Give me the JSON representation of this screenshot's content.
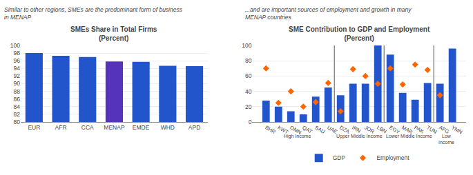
{
  "chart_data": [
    {
      "type": "bar",
      "title": "SMEs Share in Total Firms\n(Percent)",
      "subtitle": "Similar to other regions, SMEs are the predominant form of business\nin MENAP",
      "categories": [
        "EUR",
        "AFR",
        "CCA",
        "MENAP",
        "EMDE",
        "WHD",
        "APD"
      ],
      "values": [
        98.0,
        97.3,
        97.0,
        95.8,
        95.7,
        94.7,
        94.6
      ],
      "colors": [
        "#2255CC",
        "#2255CC",
        "#2255CC",
        "#5533BB",
        "#2255CC",
        "#2255CC",
        "#2255CC"
      ],
      "ylim": [
        80,
        100
      ],
      "yticks": [
        80,
        82,
        84,
        86,
        88,
        90,
        92,
        94,
        96,
        98,
        100
      ],
      "grid": true
    },
    {
      "type": "bar",
      "title": "SME Contribution to GDP and Employment\n(Percent)",
      "subtitle": "...and are important sources of employment and growth in many\nMENAP countries",
      "categories": [
        "BHR",
        "KWT",
        "OMN",
        "QAT",
        "SAU",
        "UAE",
        "DZA",
        "IRN",
        "JOR",
        "LBN",
        "EGY",
        "MAR",
        "PAK",
        "TUN",
        "AFG",
        "YMN"
      ],
      "series": [
        {
          "name": "GDP",
          "type": "bar",
          "color": "#2255CC",
          "values": [
            28,
            20,
            14,
            10,
            33,
            45,
            35,
            50,
            50,
            100,
            88,
            38,
            29,
            51,
            50,
            96
          ]
        },
        {
          "name": "Employment",
          "type": "scatter",
          "marker": "diamond",
          "color": "#FF6600",
          "values": [
            70,
            25,
            40,
            20,
            26,
            51,
            14,
            69,
            60,
            50,
            70,
            49,
            75,
            68,
            35,
            null
          ]
        }
      ],
      "annotations": [
        {
          "text": "High Income",
          "from": "BHR",
          "to": "UAE"
        },
        {
          "text": "Upper Middle Income",
          "from": "DZA",
          "to": "LBN"
        },
        {
          "text": "Lower Middle Income",
          "from": "EGY",
          "to": "TUN"
        },
        {
          "text": "Low\nIncome",
          "from": "AFG",
          "to": "YMN"
        }
      ],
      "ylim": [
        0,
        100
      ],
      "yticks": [
        0,
        20,
        40,
        60,
        80,
        100
      ],
      "grid": true,
      "legend": "bottom"
    }
  ]
}
